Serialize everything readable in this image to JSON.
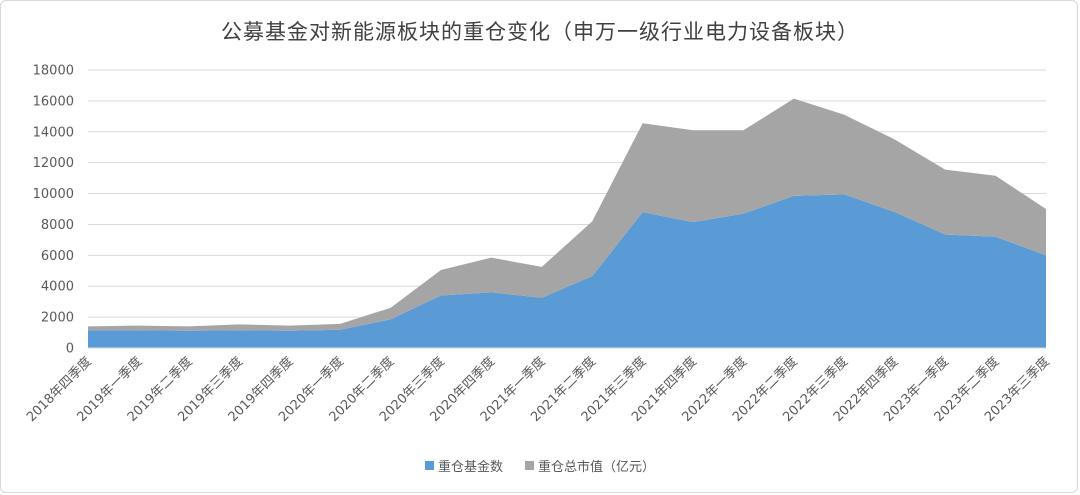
{
  "chart_data": {
    "type": "area",
    "stacked": true,
    "title": "公募基金对新能源板块的重仓变化（申万一级行业电力设备板块）",
    "categories": [
      "2018年四季度",
      "2019年一季度",
      "2019年二季度",
      "2019年三季度",
      "2019年四季度",
      "2020年一季度",
      "2020年二季度",
      "2020年三季度",
      "2020年四季度",
      "2021年一季度",
      "2021年二季度",
      "2021年三季度",
      "2021年四季度",
      "2022年一季度",
      "2022年二季度",
      "2022年三季度",
      "2022年四季度",
      "2023年一季度",
      "2023年二季度",
      "2023年三季度"
    ],
    "series": [
      {
        "name": "重仓基金数",
        "color": "#5b9bd5",
        "values": [
          1150,
          1150,
          1120,
          1150,
          1120,
          1180,
          1850,
          3400,
          3600,
          3250,
          4650,
          8800,
          8150,
          8700,
          9850,
          9950,
          8800,
          7350,
          7200,
          6000
        ]
      },
      {
        "name": "重仓总市值（亿元）",
        "color": "#a5a5a5",
        "values": [
          250,
          300,
          280,
          380,
          330,
          380,
          750,
          1650,
          2250,
          2000,
          3550,
          5750,
          5950,
          5400,
          6300,
          5150,
          4700,
          4200,
          3950,
          3000
        ]
      }
    ],
    "ylim": [
      0,
      18000
    ],
    "yticks": [
      0,
      2000,
      4000,
      6000,
      8000,
      10000,
      12000,
      14000,
      16000,
      18000
    ],
    "grid": true,
    "legend": "bottom"
  }
}
